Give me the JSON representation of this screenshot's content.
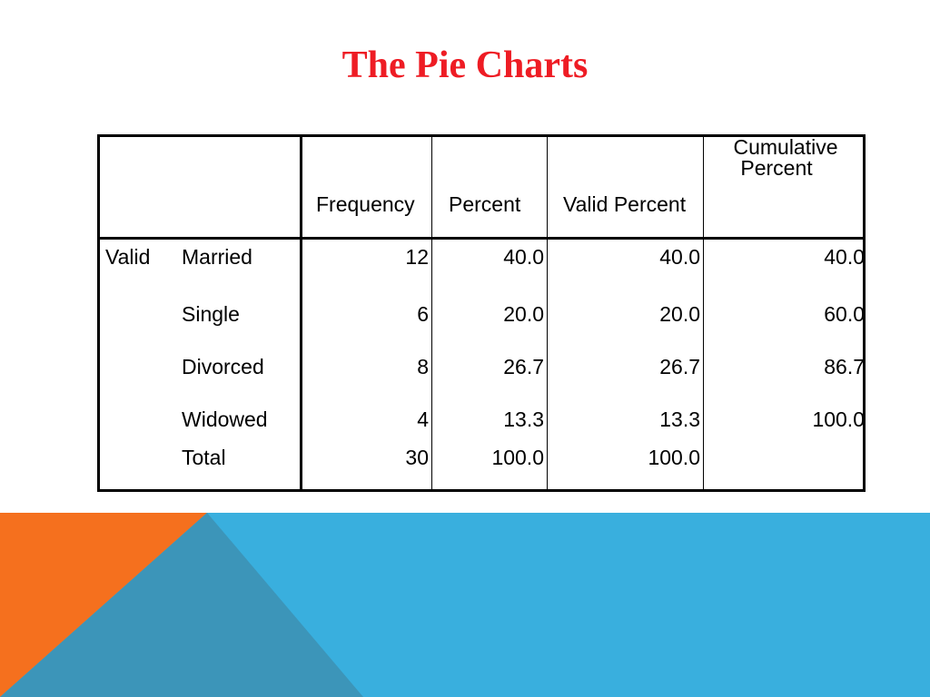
{
  "title": "The Pie Charts",
  "table": {
    "headers": {
      "frequency": "Frequency",
      "percent": "Percent",
      "valid_percent": "Valid Percent",
      "cumulative_line1": "Cumulative",
      "cumulative_line2": "Percent"
    },
    "group_label": "Valid",
    "rows": [
      {
        "label": "Married",
        "frequency": "12",
        "percent": "40.0",
        "valid_percent": "40.0",
        "cumulative": "40.0"
      },
      {
        "label": "Single",
        "frequency": "6",
        "percent": "20.0",
        "valid_percent": "20.0",
        "cumulative": "60.0"
      },
      {
        "label": "Divorced",
        "frequency": "8",
        "percent": "26.7",
        "valid_percent": "26.7",
        "cumulative": "86.7"
      },
      {
        "label": "Widowed",
        "frequency": "4",
        "percent": "13.3",
        "valid_percent": "13.3",
        "cumulative": "100.0"
      },
      {
        "label": "Total",
        "frequency": "30",
        "percent": "100.0",
        "valid_percent": "100.0",
        "cumulative": ""
      }
    ]
  },
  "colors": {
    "title": "#ee1c24",
    "band_blue": "#39afde",
    "band_orange": "#f5701e",
    "band_dark": "#3c95b9"
  }
}
